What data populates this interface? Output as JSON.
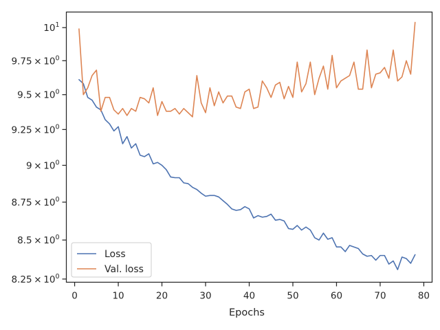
{
  "chart_data": {
    "type": "line",
    "title": "",
    "xlabel": "Epochs",
    "ylabel": "",
    "yscale": "log",
    "xlim": [
      -1.9,
      81.9
    ],
    "ylim": [
      8.23,
      10.12
    ],
    "xticks": [
      0,
      10,
      20,
      30,
      40,
      50,
      60,
      70,
      80
    ],
    "xtick_labels": [
      "0",
      "10",
      "20",
      "30",
      "40",
      "50",
      "60",
      "70",
      "80"
    ],
    "yticks": [
      8.25,
      8.5,
      8.75,
      9.0,
      9.25,
      9.5,
      9.75,
      10.0
    ],
    "ytick_labels": [
      [
        "8.25",
        "10",
        "0"
      ],
      [
        "8.5",
        "10",
        "0"
      ],
      [
        "8.75",
        "10",
        "0"
      ],
      [
        "9",
        "10",
        "0"
      ],
      [
        "9.25",
        "10",
        "0"
      ],
      [
        "9.5",
        "10",
        "0"
      ],
      [
        "9.75",
        "10",
        "0"
      ],
      [
        "",
        "10",
        "1"
      ]
    ],
    "grid": false,
    "legend_position": "lower-left",
    "x": [
      1,
      2,
      3,
      4,
      5,
      6,
      7,
      8,
      9,
      10,
      11,
      12,
      13,
      14,
      15,
      16,
      17,
      18,
      19,
      20,
      21,
      22,
      23,
      24,
      25,
      26,
      27,
      28,
      29,
      30,
      31,
      32,
      33,
      34,
      35,
      36,
      37,
      38,
      39,
      40,
      41,
      42,
      43,
      44,
      45,
      46,
      47,
      48,
      49,
      50,
      51,
      52,
      53,
      54,
      55,
      56,
      57,
      58,
      59,
      60,
      61,
      62,
      63,
      64,
      65,
      66,
      67,
      68,
      69,
      70,
      71,
      72,
      73,
      74,
      75,
      76,
      77,
      78
    ],
    "series": [
      {
        "name": "Loss",
        "color": "#4c72b0",
        "values": [
          9.61,
          9.58,
          9.48,
          9.46,
          9.41,
          9.39,
          9.32,
          9.29,
          9.24,
          9.27,
          9.15,
          9.2,
          9.12,
          9.15,
          9.07,
          9.06,
          9.08,
          9.01,
          9.02,
          9,
          8.97,
          8.92,
          8.915,
          8.915,
          8.88,
          8.875,
          8.85,
          8.835,
          8.81,
          8.79,
          8.795,
          8.795,
          8.785,
          8.76,
          8.735,
          8.705,
          8.695,
          8.7,
          8.72,
          8.705,
          8.645,
          8.66,
          8.65,
          8.655,
          8.67,
          8.63,
          8.635,
          8.625,
          8.575,
          8.57,
          8.595,
          8.565,
          8.585,
          8.565,
          8.515,
          8.5,
          8.545,
          8.505,
          8.515,
          8.455,
          8.455,
          8.425,
          8.465,
          8.455,
          8.445,
          8.41,
          8.395,
          8.4,
          8.37,
          8.4,
          8.4,
          8.345,
          8.365,
          8.31,
          8.39,
          8.38,
          8.35,
          8.405
        ]
      },
      {
        "name": "Val. loss",
        "color": "#dd8452",
        "values": [
          9.99,
          9.5,
          9.55,
          9.64,
          9.68,
          9.38,
          9.48,
          9.48,
          9.39,
          9.36,
          9.4,
          9.35,
          9.4,
          9.38,
          9.48,
          9.47,
          9.44,
          9.55,
          9.35,
          9.45,
          9.38,
          9.38,
          9.4,
          9.36,
          9.4,
          9.37,
          9.34,
          9.64,
          9.44,
          9.37,
          9.55,
          9.42,
          9.52,
          9.44,
          9.49,
          9.49,
          9.41,
          9.4,
          9.52,
          9.54,
          9.4,
          9.41,
          9.6,
          9.55,
          9.48,
          9.57,
          9.59,
          9.47,
          9.56,
          9.48,
          9.74,
          9.52,
          9.58,
          9.74,
          9.5,
          9.62,
          9.71,
          9.54,
          9.79,
          9.55,
          9.6,
          9.62,
          9.64,
          9.74,
          9.54,
          9.54,
          9.83,
          9.55,
          9.65,
          9.66,
          9.7,
          9.62,
          9.83,
          9.6,
          9.63,
          9.75,
          9.65,
          10.04
        ]
      }
    ]
  }
}
